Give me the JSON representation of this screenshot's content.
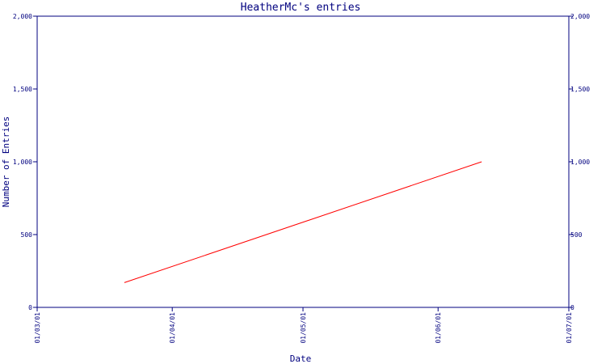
{
  "chart_data": {
    "type": "line",
    "title": "HeatherMc's entries",
    "xlabel": "Date",
    "ylabel": "Number of Entries",
    "x_ticks": [
      "01/03/01",
      "01/04/01",
      "01/05/01",
      "01/06/01",
      "01/07/01"
    ],
    "y_ticks": [
      "0",
      "500",
      "1,000",
      "1,500",
      "2,000"
    ],
    "right_y_ticks": [
      "0",
      "500",
      "1,000",
      "1,500",
      "2,000"
    ],
    "ylim": [
      0,
      2000
    ],
    "xlim": [
      "2001-03-01",
      "2001-07-01"
    ],
    "series": [
      {
        "x": [
          "2001-03-21",
          "2001-06-11"
        ],
        "y": [
          170,
          1000
        ]
      }
    ],
    "grid": false
  },
  "colors": {
    "axis": "#00007f",
    "series": "#ff0000",
    "background": "#ffffff"
  }
}
